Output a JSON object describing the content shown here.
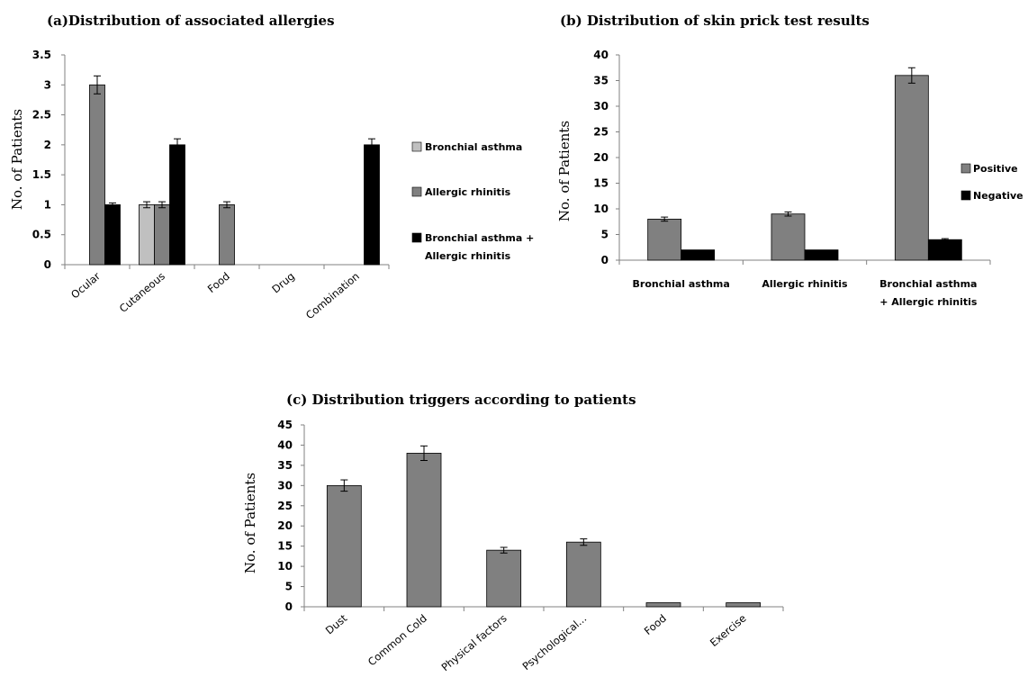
{
  "chart_data": [
    {
      "id": "a",
      "type": "bar",
      "title": "(a)Distribution of associated allergies",
      "ylabel": "No. of Patients",
      "xlabel": "",
      "ylim": [
        0,
        3.5
      ],
      "yticks": [
        "0",
        "0.5",
        "1",
        "1.5",
        "2",
        "2.5",
        "3",
        "3.5"
      ],
      "categories": [
        "Ocular",
        "Cutaneous",
        "Food",
        "Drug",
        "Combination"
      ],
      "series": [
        {
          "name": "Bronchial asthma",
          "color": "#c0c0c0",
          "values": [
            0,
            1,
            0,
            0,
            0
          ],
          "errors": [
            0,
            0.05,
            0,
            0,
            0
          ]
        },
        {
          "name": "Allergic rhinitis",
          "color": "#808080",
          "values": [
            3,
            1,
            1,
            0,
            0
          ],
          "errors": [
            0.15,
            0.05,
            0.05,
            0,
            0
          ]
        },
        {
          "name": "Bronchial asthma + Allergic rhinitis",
          "color": "#000000",
          "values": [
            1,
            2,
            0,
            0,
            2
          ],
          "errors": [
            0.03,
            0.1,
            0,
            0,
            0.1
          ]
        }
      ],
      "legend": "right",
      "grid": false
    },
    {
      "id": "b",
      "type": "bar",
      "title": "(b) Distribution of skin prick test results",
      "ylabel": "No. of Patients",
      "xlabel": "",
      "ylim": [
        0,
        40
      ],
      "yticks": [
        "0",
        "5",
        "10",
        "15",
        "20",
        "25",
        "30",
        "35",
        "40"
      ],
      "categories": [
        "Bronchial asthma",
        "Allergic rhinitis",
        "Bronchial asthma + Allergic rhinitis"
      ],
      "series": [
        {
          "name": "Positive",
          "color": "#808080",
          "values": [
            8,
            9,
            36
          ],
          "errors": [
            0.4,
            0.4,
            1.5
          ]
        },
        {
          "name": "Negative",
          "color": "#000000",
          "values": [
            2,
            2,
            4
          ],
          "errors": [
            0,
            0,
            0.2
          ]
        }
      ],
      "legend": "right",
      "grid": false
    },
    {
      "id": "c",
      "type": "bar",
      "title": "(c) Distribution triggers according to patients",
      "ylabel": "No. of Patients",
      "xlabel": "",
      "ylim": [
        0,
        45
      ],
      "yticks": [
        "0",
        "5",
        "10",
        "15",
        "20",
        "25",
        "30",
        "35",
        "40",
        "45"
      ],
      "categories": [
        "Dust",
        "Common Cold",
        "Physical factors",
        "Psychological...",
        "Food",
        "Exercise"
      ],
      "series": [
        {
          "name": "",
          "color": "#808080",
          "values": [
            30,
            38,
            14,
            16,
            1,
            1
          ],
          "errors": [
            1.4,
            1.8,
            0.7,
            0.8,
            0,
            0
          ]
        }
      ],
      "legend": "none",
      "grid": false
    }
  ]
}
